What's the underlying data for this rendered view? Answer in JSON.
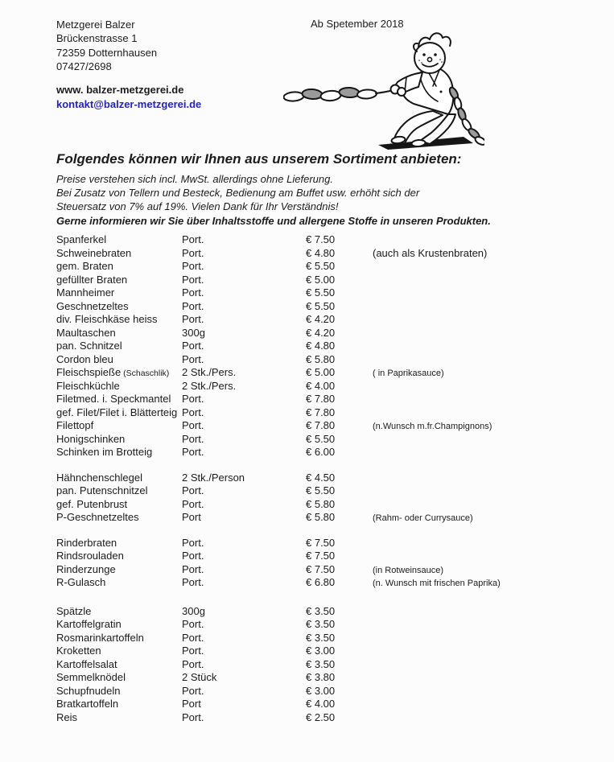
{
  "header": {
    "business_name": "Metzgerei Balzer",
    "address_line1": "Brückenstrasse 1",
    "address_line2": "72359 Dotternhausen",
    "phone": "07427/2698",
    "date_note": "Ab Spetember 2018",
    "website": "www. balzer-metzgerei.de",
    "email": "kontakt@balzer-metzgerei.de",
    "link_color": "#2222cc",
    "text_color": "#1c1c1c",
    "background_color": "#fcfcfc"
  },
  "illustration": {
    "icon": "butcher-boy-pulling-sausage-chain-illustration"
  },
  "intro": {
    "title": "Folgendes können wir Ihnen aus unserem Sortiment anbieten:",
    "lines": [
      "Preise verstehen sich incl. MwSt. allerdings ohne Lieferung.",
      "Bei Zusatz von Tellern und Besteck, Bedienung am Buffet usw. erhöht sich der",
      "Steuersatz von 7% auf 19%. Vielen Dank für Ihr Verständnis!"
    ],
    "bold_line": "Gerne informieren wir Sie über Inhaltsstoffe und allergene Stoffe in unseren Produkten."
  },
  "menu": {
    "sections": [
      {
        "items": [
          {
            "name": "Spanferkel",
            "portion": "Port.",
            "price": "€ 7.50",
            "note": ""
          },
          {
            "name": "Schweinebraten",
            "portion": "Port.",
            "price": "€ 4.80",
            "note": "(auch als Krustenbraten)",
            "note_large": true
          },
          {
            "name": "gem. Braten",
            "portion": "Port.",
            "price": "€ 5.50",
            "note": ""
          },
          {
            "name": "gefüllter Braten",
            "portion": "Port.",
            "price": "€ 5.00",
            "note": ""
          },
          {
            "name": "Mannheimer",
            "portion": "Port.",
            "price": "€ 5.50",
            "note": ""
          },
          {
            "name": "Geschnetzeltes",
            "portion": "Port.",
            "price": "€ 5.50",
            "note": ""
          },
          {
            "name": "div. Fleischkäse heiss",
            "portion": "Port.",
            "price": "€ 4.20",
            "note": ""
          },
          {
            "name": "Maultaschen",
            "portion": "300g",
            "price": "€ 4.20",
            "note": ""
          },
          {
            "name": "pan. Schnitzel",
            "portion": "Port.",
            "price": "€ 4.80",
            "note": ""
          },
          {
            "name": "Cordon bleu",
            "portion": "Port.",
            "price": "€ 5.80",
            "note": ""
          },
          {
            "name": "Fleischspieße",
            "name_small": "(Schaschlik)",
            "portion": "2 Stk./Pers.",
            "price": "€ 5.00",
            "note": "( in Paprikasauce)"
          },
          {
            "name": "Fleischküchle",
            "portion": "2 Stk./Pers.",
            "price": "€ 4.00",
            "note": ""
          },
          {
            "name": "Filetmed. i. Speckmantel",
            "portion": "Port.",
            "price": "€ 7.80",
            "note": ""
          },
          {
            "name": "gef. Filet/Filet i. Blätterteig",
            "portion": "Port.",
            "price": "€ 7.80",
            "note": ""
          },
          {
            "name": "Filettopf",
            "portion": "Port.",
            "price": "€ 7.80",
            "note": "(n.Wunsch m.fr.Champignons)"
          },
          {
            "name": "Honigschinken",
            "portion": "Port.",
            "price": "€ 5.50",
            "note": ""
          },
          {
            "name": "Schinken im Brotteig",
            "portion": "Port.",
            "price": "€ 6.00",
            "note": ""
          }
        ]
      },
      {
        "items": [
          {
            "name": "Hähnchenschlegel",
            "portion": "2 Stk./Person",
            "price": "€ 4.50",
            "note": ""
          },
          {
            "name": "pan. Putenschnitzel",
            "portion": "Port.",
            "price": "€ 5.50",
            "note": ""
          },
          {
            "name": "gef. Putenbrust",
            "portion": "Port.",
            "price": "€ 5.80",
            "note": ""
          },
          {
            "name": "P-Geschnetzeltes",
            "portion": "Port",
            "price": "€ 5.80",
            "note": "(Rahm- oder Currysauce)"
          }
        ]
      },
      {
        "items": [
          {
            "name": "Rinderbraten",
            "portion": "Port.",
            "price": "€ 7.50",
            "note": ""
          },
          {
            "name": "Rindsrouladen",
            "portion": "Port.",
            "price": "€ 7.50",
            "note": ""
          },
          {
            "name": "Rinderzunge",
            "portion": "Port.",
            "price": "€ 7.50",
            "note": "(in Rotweinsauce)"
          },
          {
            "name": "R-Gulasch",
            "portion": "Port.",
            "price": "€ 6.80",
            "note": "(n. Wunsch mit frischen Paprika)"
          }
        ]
      },
      {
        "items": [
          {
            "name": "Spätzle",
            "portion": "300g",
            "price": "€ 3.50",
            "note": ""
          },
          {
            "name": "Kartoffelgratin",
            "portion": "Port.",
            "price": "€ 3.50",
            "note": ""
          },
          {
            "name": "Rosmarinkartoffeln",
            "portion": "Port.",
            "price": "€ 3.50",
            "note": ""
          },
          {
            "name": "Kroketten",
            "portion": "Port.",
            "price": "€ 3.00",
            "note": ""
          },
          {
            "name": "Kartoffelsalat",
            "portion": "Port.",
            "price": "€ 3.50",
            "note": ""
          },
          {
            "name": "Semmelknödel",
            "portion": "2 Stück",
            "price": "€ 3.80",
            "note": ""
          },
          {
            "name": "Schupfnudeln",
            "portion": "Port.",
            "price": "€ 3.00",
            "note": ""
          },
          {
            "name": "Bratkartoffeln",
            "portion": "Port",
            "price": "€ 4.00",
            "note": ""
          },
          {
            "name": "Reis",
            "portion": "Port.",
            "price": "€ 2.50",
            "note": ""
          }
        ]
      }
    ]
  }
}
